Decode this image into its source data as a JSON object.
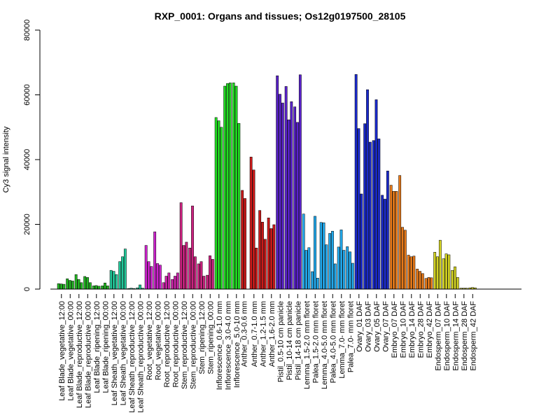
{
  "chart_data": {
    "type": "bar",
    "title": "RXP_0001: Organs and tissues; Os12g0197500_28105",
    "xlabel": "",
    "ylabel": "Cy3 signal intensity",
    "ylim": [
      0,
      80000
    ],
    "yticks": [
      0,
      20000,
      40000,
      60000,
      80000
    ],
    "grid": false,
    "groups": [
      {
        "label": "Leaf Blade_vegetative_12:00",
        "color": "#22b522",
        "values": [
          1700,
          1600,
          1500
        ]
      },
      {
        "label": "Leaf Blade_vegetative_00:00",
        "color": "#22b522",
        "values": [
          3200,
          2700,
          2500
        ]
      },
      {
        "label": "Leaf Blade_reproductive_12:00",
        "color": "#22b522",
        "values": [
          4500,
          3000,
          2000
        ]
      },
      {
        "label": "Leaf Blade_reproductive_00:00",
        "color": "#22b522",
        "values": [
          3900,
          3600,
          2000
        ]
      },
      {
        "label": "Leaf Blade_ripening_12:00",
        "color": "#22b522",
        "values": [
          1000,
          1100,
          900
        ]
      },
      {
        "label": "Leaf Blade_ripening_00:00",
        "color": "#22b522",
        "values": [
          1000,
          1900,
          1000
        ]
      },
      {
        "label": "Leaf Sheath_vegetative_12:00",
        "color": "#22c99a",
        "values": [
          5800,
          5500,
          4500
        ]
      },
      {
        "label": "Leaf Sheath_vegetative_00:00",
        "color": "#22c99a",
        "values": [
          8500,
          10000,
          12400
        ]
      },
      {
        "label": "Leaf Sheath_reproductive_12:00",
        "color": "#22c99a",
        "values": [
          200,
          300,
          200
        ]
      },
      {
        "label": "Leaf Sheath_reproductive_00:00",
        "color": "#22c99a",
        "values": [
          400,
          1300,
          300
        ]
      },
      {
        "label": "Root_vegetative_12:00",
        "color": "#cc22cc",
        "values": [
          13500,
          8500,
          7000
        ]
      },
      {
        "label": "Root_vegetative_00:00",
        "color": "#cc22cc",
        "values": [
          17700,
          7900,
          7400
        ]
      },
      {
        "label": "Root_reproductive_12:00",
        "color": "#cc22aa",
        "values": [
          2000,
          4000,
          5000
        ]
      },
      {
        "label": "Root_reproductive_00:00",
        "color": "#cc22aa",
        "values": [
          3000,
          4000,
          5000
        ]
      },
      {
        "label": "Stem_reproductive_12:00",
        "color": "#cc2280",
        "values": [
          26700,
          13500,
          14500
        ]
      },
      {
        "label": "Stem_reproductive_00:00",
        "color": "#cc2280",
        "values": [
          12700,
          25700,
          10000
        ]
      },
      {
        "label": "Stem_ripening_12:00",
        "color": "#cc2280",
        "values": [
          7800,
          8500,
          4000
        ]
      },
      {
        "label": "Stem_ripening_00:00",
        "color": "#cc2280",
        "values": [
          4300,
          10300,
          9200
        ]
      },
      {
        "label": "Inflorescence_0.6-1.0 mm",
        "color": "#22dd22",
        "values": [
          53000,
          52000,
          50000
        ]
      },
      {
        "label": "Inflorescence_3.0-4.0 mm",
        "color": "#22dd22",
        "values": [
          62700,
          63500,
          63700
        ]
      },
      {
        "label": "Inflorescence_5.0-10 mm",
        "color": "#22dd22",
        "values": [
          63700,
          62700,
          51200
        ]
      },
      {
        "label": "Anther_0.3-0.6 mm",
        "color": "#cc1a1a",
        "values": [
          30500,
          28000
        ]
      },
      {
        "label": "Anther_0.7-1.0 mm",
        "color": "#cc1a1a",
        "values": [
          40800,
          36800,
          12700
        ]
      },
      {
        "label": "Anther_1.2-1.5 mm",
        "color": "#cc1a1a",
        "values": [
          24300,
          20700,
          15400
        ]
      },
      {
        "label": "Anther_1.6-2.0 mm",
        "color": "#cc1a1a",
        "values": [
          22000,
          18700,
          19900
        ]
      },
      {
        "label": "Pistil_0.5-10 cm panicle",
        "color": "#5a22cc",
        "values": [
          65900,
          60200,
          57500
        ]
      },
      {
        "label": "Pistil_10-14 cm panicle",
        "color": "#5a22cc",
        "values": [
          62600,
          52300,
          57900
        ]
      },
      {
        "label": "Pistil_14-18 cm panicle",
        "color": "#5a22cc",
        "values": [
          56300,
          51500,
          66200
        ]
      },
      {
        "label": "Lemma_1.5-2.0 mm floret",
        "color": "#22aaee",
        "values": [
          23200,
          12000,
          12800
        ]
      },
      {
        "label": "Palea_1.5-2.0 mm floret",
        "color": "#22aaee",
        "values": [
          5400,
          22500,
          3400
        ]
      },
      {
        "label": "Lemma_4.0-5.0 mm floret",
        "color": "#22aaee",
        "values": [
          20600,
          20500,
          13700
        ]
      },
      {
        "label": "Palea_4.0-5.0 mm floret",
        "color": "#22aaee",
        "values": [
          17200,
          17900,
          7800
        ]
      },
      {
        "label": "Lemma_7.0- mm floret",
        "color": "#22aaee",
        "values": [
          13000,
          18300,
          12000
        ]
      },
      {
        "label": "Palea_7.0- mm floret",
        "color": "#22aaee",
        "values": [
          13100,
          11500,
          8000
        ]
      },
      {
        "label": "Ovary_01 DAF",
        "color": "#1a2acc",
        "values": [
          66300,
          49600,
          29400
        ]
      },
      {
        "label": "Ovary_03 DAF",
        "color": "#1a2acc",
        "values": [
          51100,
          61600,
          45400
        ]
      },
      {
        "label": "Ovary_05 DAF",
        "color": "#1a2acc",
        "values": [
          45900,
          58500,
          46400
        ]
      },
      {
        "label": "Ovary_07 DAF",
        "color": "#1a2acc",
        "values": [
          29000,
          27800,
          36500
        ]
      },
      {
        "label": "Embryo_07 DAF",
        "color": "#e87a1a",
        "values": [
          32100,
          30200,
          30200
        ]
      },
      {
        "label": "Embryo_10 DAF",
        "color": "#e87a1a",
        "values": [
          35100,
          19100,
          18200
        ]
      },
      {
        "label": "Embryo_14 DAF",
        "color": "#e87a1a",
        "values": [
          10500,
          10000,
          10200
        ]
      },
      {
        "label": "Embryo_28 DAF",
        "color": "#e87a1a",
        "values": [
          6200,
          5500,
          4800
        ]
      },
      {
        "label": "Embryo_42 DAF",
        "color": "#e87a1a",
        "values": [
          3300,
          3600,
          3500
        ]
      },
      {
        "label": "Endosperm_07 DAF",
        "color": "#d4d422",
        "values": [
          11400,
          10000,
          15100
        ]
      },
      {
        "label": "Endosperm_10 DAF",
        "color": "#d4d422",
        "values": [
          9400,
          10900,
          10600
        ]
      },
      {
        "label": "Endosperm_14 DAF",
        "color": "#d4d422",
        "values": [
          5800,
          6900,
          3600
        ]
      },
      {
        "label": "Endosperm_28 DAF",
        "color": "#d4d422",
        "values": [
          300,
          300,
          300
        ]
      },
      {
        "label": "Endosperm_42 DAF",
        "color": "#d4d422",
        "values": [
          400,
          500,
          400
        ]
      }
    ]
  }
}
